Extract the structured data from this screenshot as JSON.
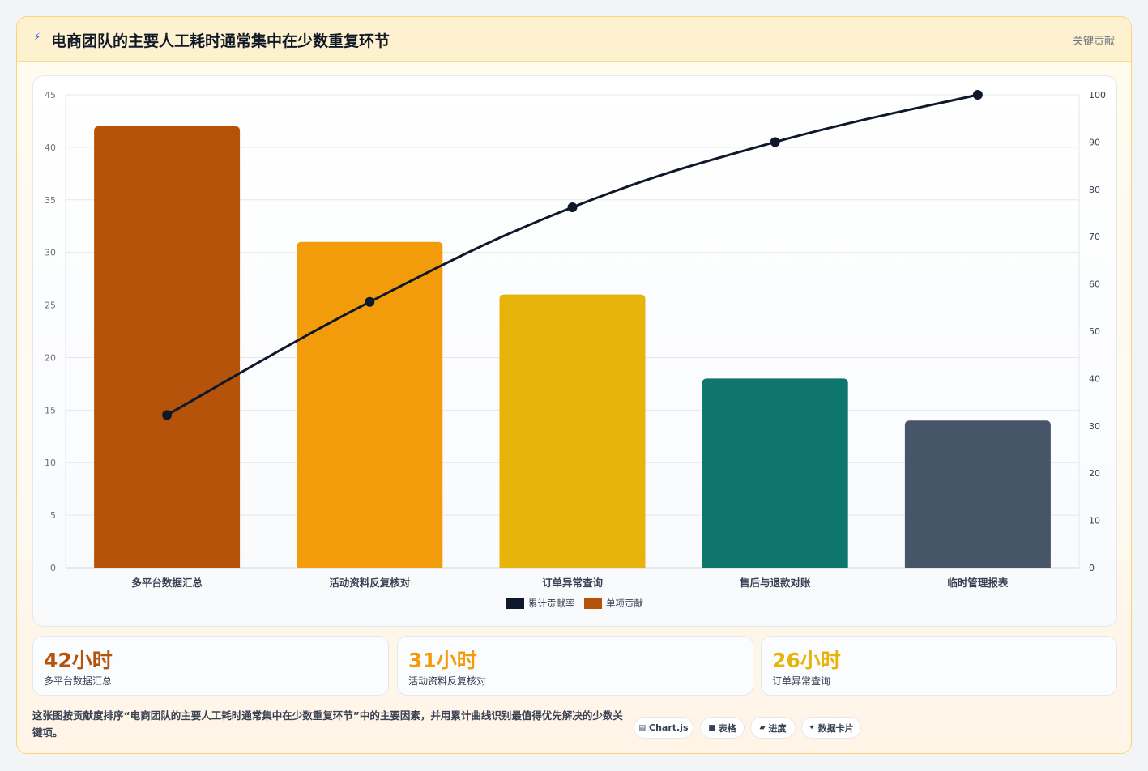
{
  "header": {
    "icon": "lightning-icon",
    "title": "电商团队的主要人工耗时通常集中在少数重复环节",
    "badge": "关键贡献"
  },
  "chart_data": {
    "type": "bar",
    "categories": [
      "多平台数据汇总",
      "活动资料反复核对",
      "订单异常查询",
      "售后与退款对账",
      "临时管理报表"
    ],
    "series": [
      {
        "name": "单项贡献",
        "type": "bar",
        "axis": "left",
        "values": [
          42,
          31,
          26,
          18,
          14
        ],
        "colors": [
          "#b45309",
          "#f39c0b",
          "#e6b40a",
          "#0f766e",
          "#475569"
        ]
      },
      {
        "name": "累计贡献率",
        "type": "line",
        "axis": "right",
        "values": [
          32.3,
          56.2,
          76.2,
          90.0,
          100.0
        ],
        "color": "#0f172a"
      }
    ],
    "ylim": [
      0,
      45
    ],
    "y_ticks": [
      0,
      5,
      10,
      15,
      20,
      25,
      30,
      35,
      40,
      45
    ],
    "y2lim": [
      0,
      100
    ],
    "y2_ticks": [
      0,
      10,
      20,
      30,
      40,
      50,
      60,
      70,
      80,
      90,
      100
    ],
    "grid": true,
    "legend_position": "bottom-center",
    "legend": [
      "累计贡献率",
      "单项贡献"
    ]
  },
  "stats": [
    {
      "value": "42小时",
      "label": "多平台数据汇总",
      "color": "#b45309"
    },
    {
      "value": "31小时",
      "label": "活动资料反复核对",
      "color": "#f39c0b"
    },
    {
      "value": "26小时",
      "label": "订单异常查询",
      "color": "#e6b40a"
    }
  ],
  "description": "这张图按贡献度排序“电商团队的主要人工耗时通常集中在少数重复环节”中的主要因素，并用累计曲线识别最值得优先解决的少数关键项。",
  "tags": [
    {
      "icon": "chart-icon",
      "label": "Chart.js"
    },
    {
      "icon": "table-icon",
      "label": "表格"
    },
    {
      "icon": "progress-icon",
      "label": "进度"
    },
    {
      "icon": "sparkle-icon",
      "label": "数据卡片"
    }
  ]
}
